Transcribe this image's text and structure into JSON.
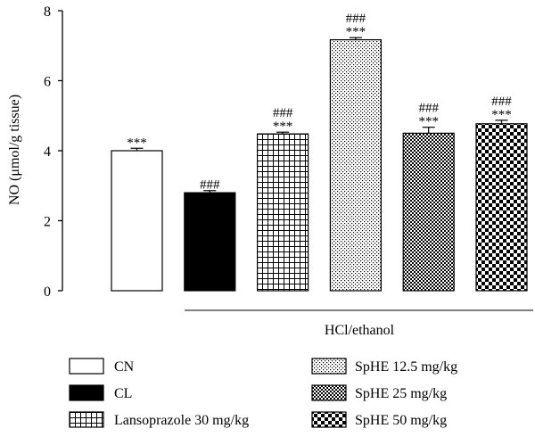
{
  "chart_data": {
    "type": "bar",
    "ylabel": "NO (μmol/g tissue)",
    "ylim": [
      0,
      8
    ],
    "yticks": [
      0,
      2,
      4,
      6,
      8
    ],
    "group_label": "HCl/ethanol",
    "bars": [
      {
        "name": "CN",
        "value": 4.0,
        "error": 0.07,
        "sig_top": "",
        "sig_bottom": "***",
        "pattern": "white"
      },
      {
        "name": "CL",
        "value": 2.8,
        "error": 0.06,
        "sig_top": "",
        "sig_bottom": "###",
        "pattern": "black"
      },
      {
        "name": "Lansoprazole 30 mg/kg",
        "value": 4.48,
        "error": 0.05,
        "sig_top": "###",
        "sig_bottom": "***",
        "pattern": "grid"
      },
      {
        "name": "SpHE 12.5 mg/kg",
        "value": 7.17,
        "error": 0.06,
        "sig_top": "###",
        "sig_bottom": "***",
        "pattern": "dots"
      },
      {
        "name": "SpHE 25 mg/kg",
        "value": 4.5,
        "error": 0.17,
        "sig_top": "###",
        "sig_bottom": "***",
        "pattern": "fine-check"
      },
      {
        "name": "SpHE 50 mg/kg",
        "value": 4.77,
        "error": 0.1,
        "sig_top": "###",
        "sig_bottom": "***",
        "pattern": "coarse-check"
      }
    ],
    "legend": [
      "CN",
      "CL",
      "Lansoprazole 30 mg/kg",
      "SpHE 12.5 mg/kg",
      "SpHE 25 mg/kg",
      "SpHE 50 mg/kg"
    ]
  }
}
